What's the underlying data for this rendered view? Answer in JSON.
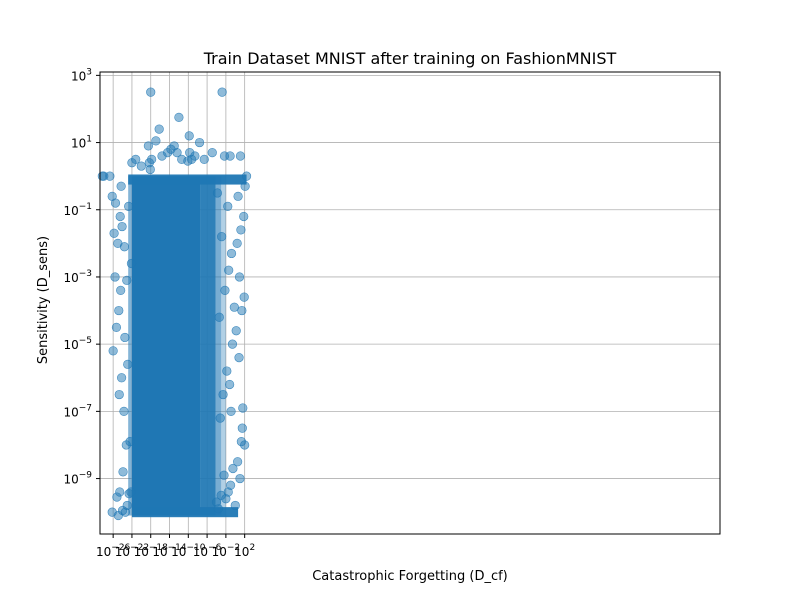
{
  "chart_data": {
    "type": "scatter",
    "title": "Train Dataset MNIST after training on FashionMNIST",
    "xlabel": "Catastrophic Forgetting (D_cf)",
    "ylabel": "Sensitivity (D_sens)",
    "xscale": "log",
    "yscale": "log",
    "xlim_exp": [
      -28.8,
      103.2
    ],
    "ylim_exp": [
      -10.65,
      3.1
    ],
    "xticks": [
      {
        "base": "10",
        "exp": "−26",
        "value": -26
      },
      {
        "base": "10",
        "exp": "−22",
        "value": -22
      },
      {
        "base": "10",
        "exp": "−18",
        "value": -18
      },
      {
        "base": "10",
        "exp": "−14",
        "value": -14
      },
      {
        "base": "10",
        "exp": "−10",
        "value": -10
      },
      {
        "base": "10",
        "exp": "−6",
        "value": -6
      },
      {
        "base": "10",
        "exp": "−2",
        "value": -2
      },
      {
        "base": "10",
        "exp": "2",
        "value": 2
      }
    ],
    "yticks": [
      {
        "base": "10",
        "exp": "3",
        "value": 3
      },
      {
        "base": "10",
        "exp": "1",
        "value": 1
      },
      {
        "base": "10",
        "exp": "−1",
        "value": -1
      },
      {
        "base": "10",
        "exp": "−3",
        "value": -3
      },
      {
        "base": "10",
        "exp": "−5",
        "value": -5
      },
      {
        "base": "10",
        "exp": "−7",
        "value": -7
      },
      {
        "base": "10",
        "exp": "−9",
        "value": -9
      }
    ],
    "grid": true,
    "marker_color": "#1f77b4",
    "marker_alpha": 0.5,
    "series": [
      {
        "points_log10": [
          [
            -28.3,
            0.0
          ],
          [
            -28.0,
            0.0
          ],
          [
            -26.7,
            0.0
          ],
          [
            -26.2,
            -0.6
          ],
          [
            -26.2,
            -10.0
          ],
          [
            -25.2,
            -9.55
          ],
          [
            -24.9,
            -10.1
          ],
          [
            -24.6,
            -9.4
          ],
          [
            -24.0,
            -9.95
          ],
          [
            -23.4,
            -10.0
          ],
          [
            -23.0,
            -9.8
          ],
          [
            -22.6,
            -9.45
          ],
          [
            -22.2,
            -9.4
          ],
          [
            -25.6,
            -3.0
          ],
          [
            -25.3,
            -4.5
          ],
          [
            -24.8,
            -4.0
          ],
          [
            -24.2,
            -6.0
          ],
          [
            -23.7,
            -7.0
          ],
          [
            -23.2,
            -8.0
          ],
          [
            -25.5,
            -0.8
          ],
          [
            -24.5,
            -1.2
          ],
          [
            -24.1,
            -1.5
          ],
          [
            -23.6,
            -2.1
          ],
          [
            -23.9,
            -8.8
          ],
          [
            -24.4,
            -3.4
          ],
          [
            -25.0,
            -2.0
          ],
          [
            -24.7,
            -6.5
          ],
          [
            -23.5,
            -4.8
          ],
          [
            -22.9,
            -5.6
          ],
          [
            -22.4,
            -7.9
          ],
          [
            -23.1,
            -3.1
          ],
          [
            -22.7,
            -0.9
          ],
          [
            -26.0,
            -5.2
          ],
          [
            -25.8,
            -1.7
          ],
          [
            -24.3,
            -0.3
          ],
          [
            -22.1,
            -2.6
          ],
          [
            -22.0,
            0.4
          ],
          [
            -21.2,
            0.5
          ],
          [
            -20.0,
            0.3
          ],
          [
            -18.5,
            0.9
          ],
          [
            -18.3,
            0.4
          ],
          [
            -18.0,
            2.5
          ],
          [
            -17.8,
            0.5
          ],
          [
            -16.9,
            1.05
          ],
          [
            -16.2,
            1.4
          ],
          [
            -15.6,
            0.6
          ],
          [
            -14.4,
            0.7
          ],
          [
            -13.7,
            0.8
          ],
          [
            -13.0,
            0.9
          ],
          [
            -12.4,
            0.7
          ],
          [
            -12.0,
            1.75
          ],
          [
            -11.4,
            0.5
          ],
          [
            -9.8,
            1.2
          ],
          [
            -9.7,
            0.7
          ],
          [
            -8.6,
            0.6
          ],
          [
            -7.6,
            1.0
          ],
          [
            -6.6,
            0.5
          ],
          [
            -4.9,
            0.7
          ],
          [
            -2.3,
            0.6
          ],
          [
            -1.1,
            0.6
          ],
          [
            1.1,
            0.6
          ],
          [
            -2.8,
            2.5
          ],
          [
            -18.1,
            0.2
          ],
          [
            -9.3,
            0.5
          ],
          [
            -10.1,
            0.45
          ],
          [
            -4.0,
            -9.7
          ],
          [
            -3.6,
            -9.9
          ],
          [
            -3.0,
            -9.5
          ],
          [
            -2.4,
            -8.9
          ],
          [
            -2.0,
            -9.6
          ],
          [
            -1.5,
            -9.4
          ],
          [
            -1.0,
            -9.2
          ],
          [
            -0.5,
            -8.7
          ],
          [
            0.0,
            -9.8
          ],
          [
            0.5,
            -8.5
          ],
          [
            1.0,
            -9.0
          ],
          [
            1.5,
            -7.5
          ],
          [
            2.0,
            -8.0
          ],
          [
            -3.2,
            -7.2
          ],
          [
            -2.6,
            -6.5
          ],
          [
            -1.8,
            -5.8
          ],
          [
            -1.2,
            -6.2
          ],
          [
            -0.6,
            -5.0
          ],
          [
            0.2,
            -4.6
          ],
          [
            0.8,
            -5.4
          ],
          [
            1.4,
            -4.0
          ],
          [
            1.9,
            -3.6
          ],
          [
            -3.4,
            -4.2
          ],
          [
            -2.2,
            -3.4
          ],
          [
            -1.4,
            -2.8
          ],
          [
            -0.8,
            -2.3
          ],
          [
            0.4,
            -2.0
          ],
          [
            1.2,
            -1.6
          ],
          [
            1.8,
            -1.2
          ],
          [
            -2.9,
            -1.8
          ],
          [
            -1.6,
            -0.9
          ],
          [
            0.6,
            -0.6
          ],
          [
            2.1,
            -0.3
          ],
          [
            -0.2,
            -3.9
          ],
          [
            1.6,
            -6.9
          ],
          [
            -3.8,
            -0.5
          ],
          [
            2.4,
            0.0
          ],
          [
            1.3,
            -7.9
          ],
          [
            -0.9,
            -7.0
          ],
          [
            0.9,
            -3.0
          ]
        ]
      }
    ]
  }
}
